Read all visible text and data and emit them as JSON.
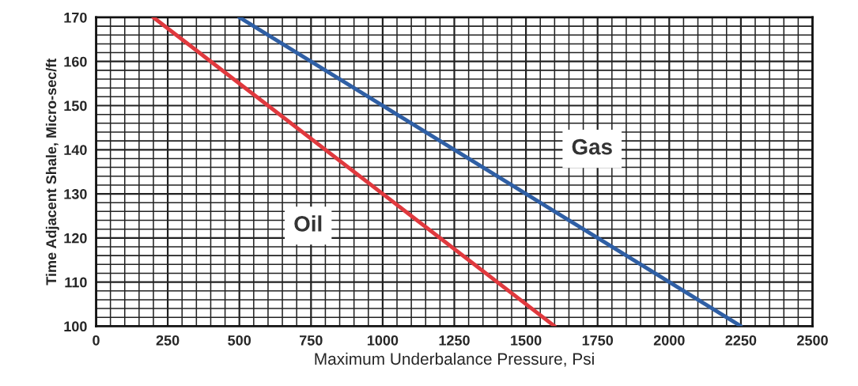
{
  "chart_data": {
    "type": "line",
    "xlabel": "Maximum Underbalance Pressure, Psi",
    "ylabel": "Time Adjacent Shale, Micro-sec/ft",
    "series": [
      {
        "name": "Oil",
        "color": "#e0393e",
        "x": [
          200,
          1600
        ],
        "values": [
          170,
          100
        ]
      },
      {
        "name": "Gas",
        "color": "#2f5fa5",
        "x": [
          500,
          2250
        ],
        "values": [
          170,
          100
        ]
      }
    ],
    "xlim": [
      0,
      2500
    ],
    "xticks": [
      0,
      250,
      500,
      750,
      1000,
      1250,
      1500,
      1750,
      2000,
      2250,
      2500
    ],
    "ylim": [
      100,
      170
    ],
    "yticks": [
      100,
      110,
      120,
      130,
      140,
      150,
      160,
      170
    ],
    "grid": true,
    "marker": "none",
    "line_style": "solid"
  }
}
